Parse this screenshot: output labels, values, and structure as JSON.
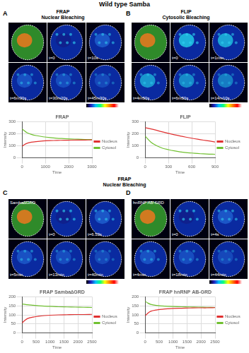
{
  "title": "Wild type Samba",
  "section_header": {
    "title": "FRAP",
    "subtitle": "Nuclear Bleaching"
  },
  "panels": [
    {
      "letter": "A",
      "title": "FRAP",
      "subtitle": "Nuclear Bleaching",
      "timepoints": [
        null,
        "t=0",
        "t=10s",
        "t=6m30s",
        "t=30m20s",
        "t=45m30s"
      ]
    },
    {
      "letter": "B",
      "title": "FLIP",
      "subtitle": "Cytosolic Bleaching",
      "timepoints": [
        null,
        "t=0",
        "t=1min",
        "t=4m50s",
        "t=6m50s",
        "t=14m10s"
      ]
    },
    {
      "letter": "C",
      "title": "Samba∆GRD",
      "timepoints": [
        null,
        "t=0",
        "t=6.53s",
        "t=5min",
        "t=13min",
        "t=40min"
      ]
    },
    {
      "letter": "D",
      "title": "hnRNP AB-GRD",
      "timepoints": [
        null,
        "t=0",
        "t=4s",
        "t=4min",
        "t=18min",
        "t=44min"
      ]
    }
  ],
  "chart_data": [
    {
      "type": "line",
      "title": "FRAP",
      "x_label": "Time",
      "y_label": "Intensity",
      "x": [
        0,
        100,
        200,
        400,
        600,
        900,
        1200,
        1500,
        1800,
        2100,
        2400,
        2700,
        3000
      ],
      "series": [
        {
          "name": "Nucleus",
          "color": "#e03030",
          "values": [
            95,
            110,
            120,
            130,
            135,
            140,
            143,
            145,
            146,
            147,
            148,
            148,
            149
          ]
        },
        {
          "name": "Cytosol",
          "color": "#70c030",
          "values": [
            240,
            225,
            210,
            195,
            185,
            175,
            168,
            163,
            160,
            157,
            155,
            153,
            152
          ]
        }
      ],
      "xlim": [
        0,
        3000
      ],
      "xticks": [
        0,
        1000,
        2000,
        3000
      ],
      "ylim": [
        0,
        300
      ],
      "yticks": [
        0,
        100,
        200,
        300
      ],
      "grid": true,
      "legend": "right"
    },
    {
      "type": "line",
      "title": "FLIP",
      "x_label": "Time",
      "y_label": "Intensity",
      "x": [
        0,
        75,
        150,
        225,
        300,
        375,
        450,
        525,
        600,
        675,
        750,
        825,
        900
      ],
      "series": [
        {
          "name": "Nucleus",
          "color": "#e03030",
          "values": [
            250,
            240,
            228,
            215,
            203,
            192,
            182,
            172,
            163,
            155,
            147,
            140,
            132
          ]
        },
        {
          "name": "Cytosol",
          "color": "#70c030",
          "values": [
            180,
            130,
            100,
            80,
            68,
            58,
            50,
            44,
            40,
            36,
            33,
            31,
            30
          ]
        }
      ],
      "xlim": [
        0,
        900
      ],
      "xticks": [
        0,
        300,
        600,
        900
      ],
      "ylim": [
        0,
        300
      ],
      "yticks": [
        0,
        100,
        200,
        300
      ],
      "grid": true,
      "legend": "right"
    },
    {
      "type": "line",
      "title": "FRAP Samba∆GRD",
      "x_label": "Time",
      "y_label": "Intensity",
      "x": [
        0,
        100,
        200,
        400,
        600,
        800,
        1000,
        1300,
        1600,
        1900,
        2200,
        2500
      ],
      "series": [
        {
          "name": "Nucleus",
          "color": "#e03030",
          "values": [
            55,
            70,
            80,
            88,
            93,
            96,
            98,
            100,
            101,
            102,
            102,
            103
          ]
        },
        {
          "name": "Cytosol",
          "color": "#70c030",
          "values": [
            160,
            158,
            156,
            153,
            150,
            148,
            147,
            145,
            144,
            143,
            142,
            141
          ]
        }
      ],
      "xlim": [
        0,
        2500
      ],
      "xticks": [
        0,
        500,
        1000,
        1500,
        2000,
        2500
      ],
      "ylim": [
        0,
        200
      ],
      "yticks": [
        0,
        50,
        100,
        150,
        200
      ],
      "grid": true,
      "legend": "right"
    },
    {
      "type": "line",
      "title": "FRAP hnRNP AB-GRD",
      "x_label": "Time",
      "y_label": "Intensity",
      "x": [
        0,
        100,
        200,
        400,
        600,
        800,
        1000,
        1300,
        1600,
        1900,
        2200,
        2500
      ],
      "series": [
        {
          "name": "Nucleus",
          "color": "#e03030",
          "values": [
            95,
            110,
            120,
            127,
            131,
            134,
            136,
            137,
            138,
            139,
            139,
            140
          ]
        },
        {
          "name": "Cytosol",
          "color": "#70c030",
          "values": [
            175,
            165,
            158,
            152,
            149,
            147,
            146,
            145,
            144,
            143,
            142,
            141
          ]
        }
      ],
      "xlim": [
        0,
        2500
      ],
      "xticks": [
        0,
        500,
        1000,
        1500,
        2000,
        2500
      ],
      "ylim": [
        0,
        200
      ],
      "yticks": [
        0,
        50,
        100,
        150,
        200
      ],
      "grid": true,
      "legend": "right"
    }
  ]
}
